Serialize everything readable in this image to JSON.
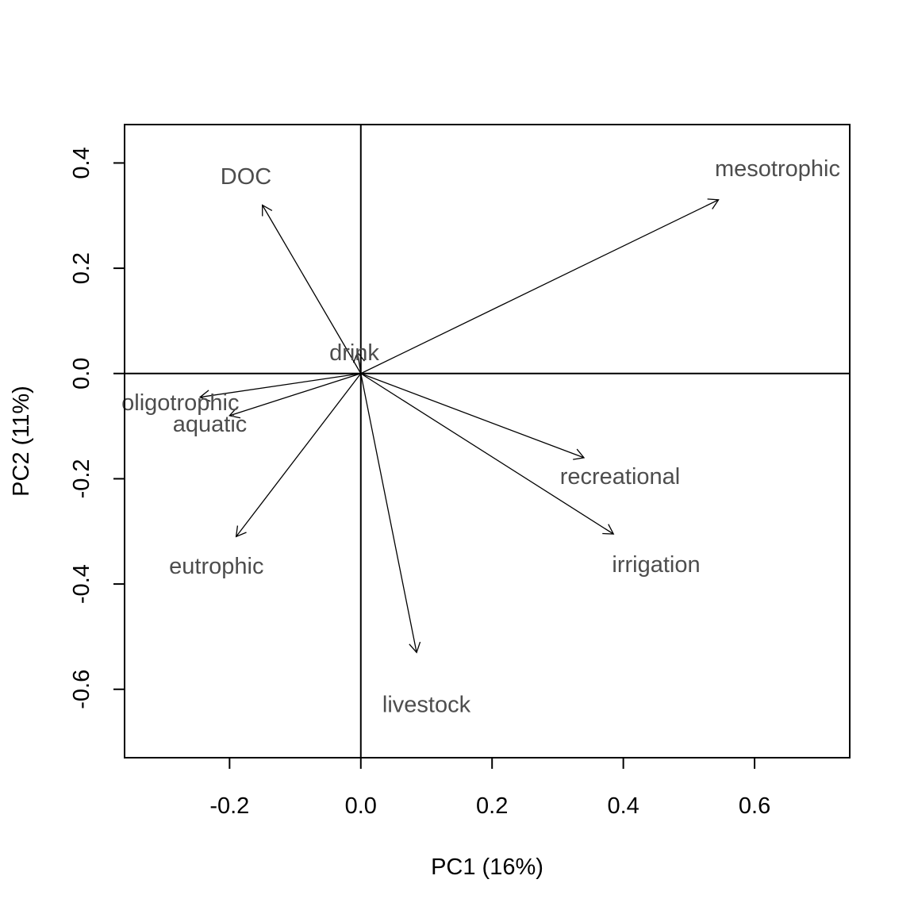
{
  "chart_data": {
    "type": "scatter",
    "xlabel": "PC1 (16%)",
    "ylabel": "PC2 (11%)",
    "xlim": [
      -0.36,
      0.745
    ],
    "ylim": [
      -0.73,
      0.473
    ],
    "x_ticks": [
      -0.2,
      0.0,
      0.2,
      0.4,
      0.6
    ],
    "x_tick_labels": [
      "-0.2",
      "0.0",
      "0.2",
      "0.4",
      "0.6"
    ],
    "y_ticks": [
      -0.6,
      -0.4,
      -0.2,
      0.0,
      0.2,
      0.4
    ],
    "y_tick_labels": [
      "-0.6",
      "-0.4",
      "-0.2",
      "0.0",
      "0.2",
      "0.4"
    ],
    "reference_lines": {
      "x": 0,
      "y": 0
    },
    "grid": false,
    "legend": "none",
    "arrows": [
      {
        "label": "DOC",
        "x": -0.15,
        "y": 0.32,
        "label_x": -0.175,
        "label_y": 0.375
      },
      {
        "label": "mesotrophic",
        "x": 0.545,
        "y": 0.33,
        "label_x": 0.635,
        "label_y": 0.39
      },
      {
        "label": "drink",
        "x": -0.005,
        "y": 0.04,
        "label_x": -0.01,
        "label_y": 0.04
      },
      {
        "label": "oligotrophic",
        "x": -0.245,
        "y": -0.045,
        "label_x": -0.275,
        "label_y": -0.055
      },
      {
        "label": "aquatic",
        "x": -0.2,
        "y": -0.08,
        "label_x": -0.23,
        "label_y": -0.095
      },
      {
        "label": "eutrophic",
        "x": -0.19,
        "y": -0.31,
        "label_x": -0.22,
        "label_y": -0.365
      },
      {
        "label": "recreational",
        "x": 0.34,
        "y": -0.16,
        "label_x": 0.395,
        "label_y": -0.195
      },
      {
        "label": "irrigation",
        "x": 0.385,
        "y": -0.305,
        "label_x": 0.45,
        "label_y": -0.362
      },
      {
        "label": "livestock",
        "x": 0.085,
        "y": -0.53,
        "label_x": 0.1,
        "label_y": -0.628
      }
    ]
  }
}
